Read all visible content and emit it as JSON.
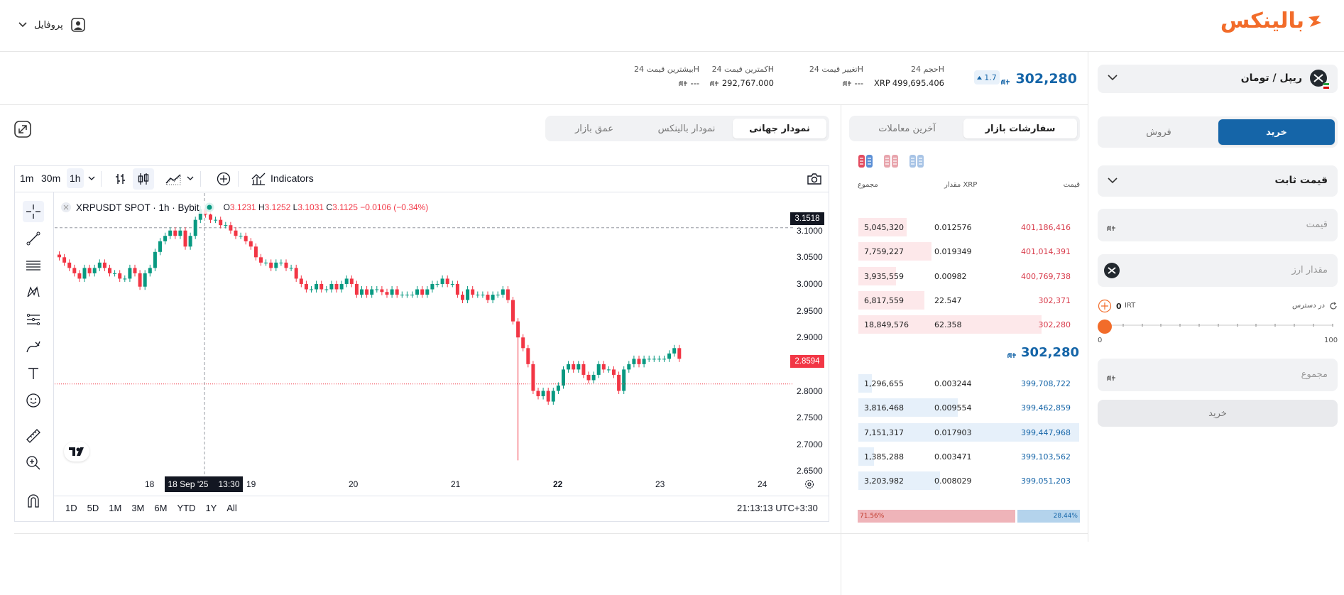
{
  "header": {
    "logo_text": "بالینکس",
    "profile_label": "پروفایل"
  },
  "market": {
    "pair": "ریپل / تومان",
    "price": "302,280",
    "change_pct": "1.7",
    "stats": [
      {
        "label": "حجم 24H",
        "value": "499,695.406",
        "unit": "XRP"
      },
      {
        "label": "تغییر قیمت 24H",
        "value": "---"
      },
      {
        "label": "کمترین قیمت 24H",
        "value": "292,767.000"
      },
      {
        "label": "بیشترین قیمت 24H",
        "value": "---"
      }
    ]
  },
  "order_form": {
    "buy_tab": "خرید",
    "sell_tab": "فروش",
    "order_type": "قیمت ثابت",
    "price_placeholder": "قیمت",
    "amount_placeholder": "مقدار ارز",
    "available_label": "در دسترس",
    "available_value": "0",
    "available_unit": "IRT",
    "slider_min": "0",
    "slider_max": "100",
    "total_placeholder": "مجموع",
    "submit_label": "خرید"
  },
  "orderbook": {
    "tabs": [
      "سفارشات بازار",
      "آخرین معاملات"
    ],
    "active_tab": 0,
    "col_price": "قیمت",
    "col_amount": "مقدار XRP",
    "col_total": "مجموع",
    "asks": [
      {
        "price": "401,186,416",
        "amount": "0.012576",
        "total": "5,045,320",
        "depth": 0.22
      },
      {
        "price": "401,014,391",
        "amount": "0.019349",
        "total": "7,759,227",
        "depth": 0.33
      },
      {
        "price": "400,769,738",
        "amount": "0.00982",
        "total": "3,935,559",
        "depth": 0.17
      },
      {
        "price": "302,371",
        "amount": "22.547",
        "total": "6,817,559",
        "depth": 0.3
      },
      {
        "price": "302,280",
        "amount": "62.358",
        "total": "18,849,576",
        "depth": 0.83
      }
    ],
    "mid_price": "302,280",
    "bids": [
      {
        "price": "399,708,722",
        "amount": "0.003244",
        "total": "1,296,655",
        "depth": 0.06
      },
      {
        "price": "399,462,859",
        "amount": "0.009554",
        "total": "3,816,468",
        "depth": 0.45
      },
      {
        "price": "399,447,968",
        "amount": "0.017903",
        "total": "7,151,317",
        "depth": 1.0
      },
      {
        "price": "399,103,562",
        "amount": "0.003471",
        "total": "1,385,288",
        "depth": 0.07
      },
      {
        "price": "399,051,203",
        "amount": "0.008029",
        "total": "3,203,982",
        "depth": 0.37
      }
    ],
    "sell_ratio": "71.56%",
    "buy_ratio": "28.44%",
    "sell_fraction": 0.7156
  },
  "chart_tabs": [
    "نمودار جهانی",
    "نمودار بالینکس",
    "عمق بازار"
  ],
  "chart_toolbar": {
    "intervals": [
      "1m",
      "30m",
      "1h"
    ],
    "indicators": "Indicators"
  },
  "chart_data": {
    "type": "candlestick",
    "symbol": "XRPUSDT SPOT · 1h · Bybit",
    "ohlc": {
      "o_label": "O",
      "o": "3.1231",
      "h_label": "H",
      "h": "3.1252",
      "l_label": "L",
      "l": "3.1031",
      "c_label": "C",
      "c": "3.1125",
      "chg": "−0.0106 (−0.34%)"
    },
    "yticks": [
      "3.1000",
      "3.0500",
      "3.0000",
      "2.9500",
      "2.9000",
      "2.8500",
      "2.8000",
      "2.7500",
      "2.7000",
      "2.6500"
    ],
    "ytick_values": [
      3.1,
      3.05,
      3.0,
      2.95,
      2.9,
      2.85,
      2.8,
      2.75,
      2.7,
      2.65
    ],
    "xticks": [
      "18",
      "19",
      "20",
      "21",
      "22",
      "23",
      "24"
    ],
    "crosshair_price": "3.1518",
    "last_price": "2.8594",
    "crosshair_time": "18 Sep '25",
    "crosshair_hour": "13:30",
    "ylim": [
      2.62,
      3.17
    ],
    "path": [
      3.05,
      3.04,
      3.03,
      3.02,
      3.01,
      3.03,
      3.02,
      3.03,
      3.04,
      3.03,
      3.02,
      3.02,
      3.01,
      3.01,
      3.03,
      3.02,
      2.995,
      3.02,
      3.03,
      3.06,
      3.08,
      3.09,
      3.1,
      3.09,
      3.1,
      3.07,
      3.09,
      3.12,
      3.14,
      3.13,
      3.12,
      3.12,
      3.11,
      3.11,
      3.1,
      3.09,
      3.09,
      3.08,
      3.07,
      3.05,
      3.04,
      3.04,
      3.03,
      3.04,
      3.04,
      3.03,
      3.03,
      3.01,
      3.0,
      2.99,
      2.99,
      3.0,
      2.99,
      2.99,
      3.0,
      2.99,
      3.0,
      3.01,
      3.0,
      2.98,
      2.99,
      2.98,
      2.99,
      2.99,
      2.985,
      2.98,
      2.99,
      2.98,
      2.98,
      2.98,
      2.98,
      2.99,
      2.98,
      2.99,
      3.0,
      3.0,
      3.01,
      3.0,
      3.0,
      2.98,
      2.97,
      2.99,
      2.98,
      2.98,
      2.98,
      2.97,
      2.98,
      2.98,
      2.99,
      2.97,
      2.93,
      2.9,
      2.88,
      2.85,
      2.8,
      2.79,
      2.8,
      2.78,
      2.8,
      2.81,
      2.84,
      2.85,
      2.84,
      2.85,
      2.83,
      2.82,
      2.83,
      2.85,
      2.84,
      2.84,
      2.83,
      2.8,
      2.84,
      2.85,
      2.86,
      2.85,
      2.86,
      2.86,
      2.86,
      2.86,
      2.86,
      2.87,
      2.88,
      2.86
    ],
    "wicks": {
      "91": 2.67
    }
  },
  "time_ranges": [
    "1D",
    "5D",
    "1M",
    "3M",
    "6M",
    "YTD",
    "1Y",
    "All"
  ],
  "clock": "21:13:13 UTC+3:30"
}
